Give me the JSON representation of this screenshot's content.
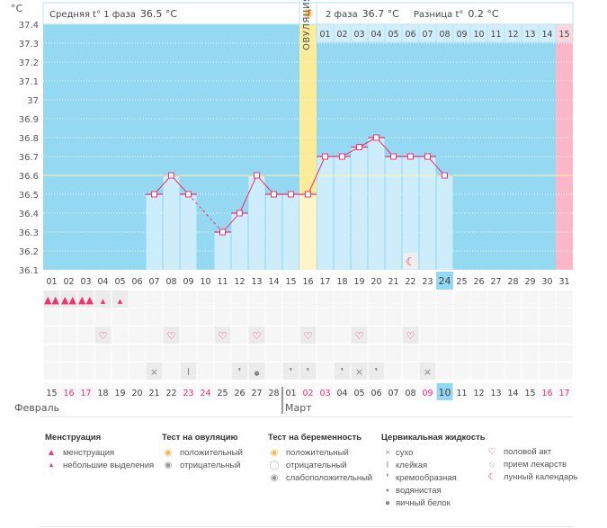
{
  "header": {
    "unit": "°C",
    "phase1_label": "Средняя t° 1 фаза",
    "phase1_value": "36.5 °C",
    "phase2_label": "2 фаза",
    "phase2_value": "36.7 °C",
    "diff_label": "Разница t°",
    "diff_value": "0.2 °C",
    "ovulation_label": "ОВУЛЯЦИЯ"
  },
  "months": {
    "feb": "Февраль",
    "mar": "Март"
  },
  "colors": {
    "sky": "#94d8f2",
    "bar": "#cdedfb",
    "ovulation": "#fbec9a",
    "pink": "#fbb6c7",
    "line": "#f0336e",
    "red_date": "#f0336e"
  },
  "chart_data": {
    "type": "line",
    "title": "",
    "ylabel": "°C",
    "ylim": [
      36.1,
      37.4
    ],
    "yticks": [
      "37.4",
      "37.3",
      "37.2",
      "37.1",
      "37",
      "36.9",
      "36.8",
      "36.7",
      "36.6",
      "36.5",
      "36.4",
      "36.3",
      "36.2",
      "36.1"
    ],
    "coverline": 36.6,
    "ovulation_day": 16,
    "today_day": 24,
    "cycle_days": [
      "01",
      "02",
      "03",
      "04",
      "05",
      "06",
      "07",
      "08",
      "09",
      "10",
      "11",
      "12",
      "13",
      "14",
      "15",
      "16",
      "17",
      "18",
      "19",
      "20",
      "21",
      "22",
      "23",
      "24",
      "25",
      "26",
      "27",
      "28",
      "29",
      "30",
      "31"
    ],
    "temperatures": [
      null,
      null,
      null,
      null,
      null,
      null,
      36.5,
      36.6,
      36.5,
      null,
      36.3,
      36.4,
      36.6,
      36.5,
      36.5,
      36.5,
      36.7,
      36.7,
      36.75,
      36.8,
      36.7,
      36.7,
      36.7,
      36.6,
      null,
      null,
      null,
      null,
      null,
      null,
      null
    ],
    "phase2_days": [
      "01",
      "02",
      "03",
      "04",
      "05",
      "06",
      "07",
      "08",
      "09",
      "10",
      "11",
      "12",
      "13",
      "14",
      "15"
    ],
    "calendar_dates": [
      "15",
      "16",
      "17",
      "18",
      "19",
      "20",
      "21",
      "22",
      "23",
      "24",
      "25",
      "26",
      "27",
      "28",
      "01",
      "02",
      "03",
      "04",
      "05",
      "06",
      "07",
      "08",
      "09",
      "10",
      "11",
      "12",
      "13",
      "14",
      "15",
      "16",
      "17"
    ],
    "weekend_days": [
      2,
      3,
      9,
      10,
      16,
      17,
      23,
      30,
      31
    ],
    "menstruation": {
      "1": "heavy",
      "2": "heavy",
      "3": "heavy",
      "4": "light",
      "5": "light"
    },
    "intercourse_days": [
      4,
      8,
      11,
      13,
      16,
      19,
      22
    ],
    "cervical": {
      "7": "dry",
      "9": "sticky",
      "12": "creamy",
      "13": "watery",
      "15": "creamy",
      "16": "creamy",
      "18": "creamy",
      "19": "dry",
      "20": "creamy",
      "23": "dry"
    },
    "moon_days": [
      22
    ]
  },
  "legend": {
    "menstruation": {
      "title": "Менструация",
      "items": [
        "менструация",
        "небольшие выделения"
      ]
    },
    "ovulation_test": {
      "title": "Тест на овуляцию",
      "items": [
        "положительный",
        "отрицательный"
      ]
    },
    "pregnancy_test": {
      "title": "Тест на беременность",
      "items": [
        "положительный",
        "отрицательный",
        "слабоположительный"
      ]
    },
    "cervical": {
      "title": "Цервикальная жидкость",
      "items": [
        "сухо",
        "клейкая",
        "кремообразная",
        "водянистая",
        "яичный белок"
      ]
    },
    "other": {
      "items": [
        "половой акт",
        "прием лекарств",
        "лунный календарь"
      ]
    }
  }
}
